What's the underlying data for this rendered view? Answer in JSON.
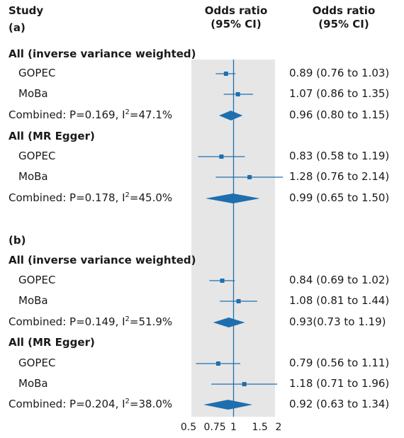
{
  "header": {
    "study": "Study",
    "or_col": "Odds ratio\n(95% CI)",
    "ci_col": "Odds ratio\n(95% CI)"
  },
  "chart_data": {
    "type": "forest",
    "x_scale": "log",
    "xlim": [
      0.5,
      2
    ],
    "x_ticks": [
      "0.5",
      "0.75",
      "1",
      "1.5",
      "2"
    ],
    "x_tick_values": [
      0.5,
      0.75,
      1,
      1.5,
      2
    ],
    "reference_line": 1,
    "color": "#1f6faf",
    "panels": [
      {
        "label": "(a)",
        "groups": [
          {
            "title": "All (inverse variance weighted)",
            "studies": [
              {
                "name": "GOPEC",
                "or": 0.89,
                "lo": 0.76,
                "hi": 1.03,
                "text": "0.89 (0.76 to 1.03)"
              },
              {
                "name": "MoBa",
                "or": 1.07,
                "lo": 0.86,
                "hi": 1.35,
                "text": "1.07 (0.86 to 1.35)"
              }
            ],
            "combined": {
              "label": "Combined: P=0.169, I",
              "stat": "=47.1%",
              "or": 0.96,
              "lo": 0.8,
              "hi": 1.15,
              "text": "0.96 (0.80 to 1.15)"
            }
          },
          {
            "title": "All (MR Egger)",
            "studies": [
              {
                "name": "GOPEC",
                "or": 0.83,
                "lo": 0.58,
                "hi": 1.19,
                "text": "0.83 (0.58 to 1.19)"
              },
              {
                "name": "MoBa",
                "or": 1.28,
                "lo": 0.76,
                "hi": 2.14,
                "text": "1.28 (0.76 to 2.14)"
              }
            ],
            "combined": {
              "label": "Combined: P=0.178, I",
              "stat": "=45.0%",
              "or": 0.99,
              "lo": 0.65,
              "hi": 1.5,
              "text": "0.99 (0.65 to 1.50)"
            }
          }
        ]
      },
      {
        "label": "(b)",
        "groups": [
          {
            "title": "All (inverse variance weighted)",
            "studies": [
              {
                "name": "GOPEC",
                "or": 0.84,
                "lo": 0.69,
                "hi": 1.02,
                "text": "0.84 (0.69 to 1.02)"
              },
              {
                "name": "MoBa",
                "or": 1.08,
                "lo": 0.81,
                "hi": 1.44,
                "text": "1.08 (0.81 to 1.44)"
              }
            ],
            "combined": {
              "label": "Combined: P=0.149, I",
              "stat": "=51.9%",
              "or": 0.93,
              "lo": 0.73,
              "hi": 1.19,
              "text": "0.93(0.73 to 1.19)"
            }
          },
          {
            "title": "All (MR Egger)",
            "studies": [
              {
                "name": "GOPEC",
                "or": 0.79,
                "lo": 0.56,
                "hi": 1.11,
                "text": "0.79 (0.56 to 1.11)"
              },
              {
                "name": "MoBa",
                "or": 1.18,
                "lo": 0.71,
                "hi": 1.96,
                "text": "1.18 (0.71 to 1.96)"
              }
            ],
            "combined": {
              "label": "Combined: P=0.204, I",
              "stat": "=38.0%",
              "or": 0.92,
              "lo": 0.63,
              "hi": 1.34,
              "text": "0.92 (0.63 to 1.34)"
            }
          }
        ]
      }
    ]
  }
}
